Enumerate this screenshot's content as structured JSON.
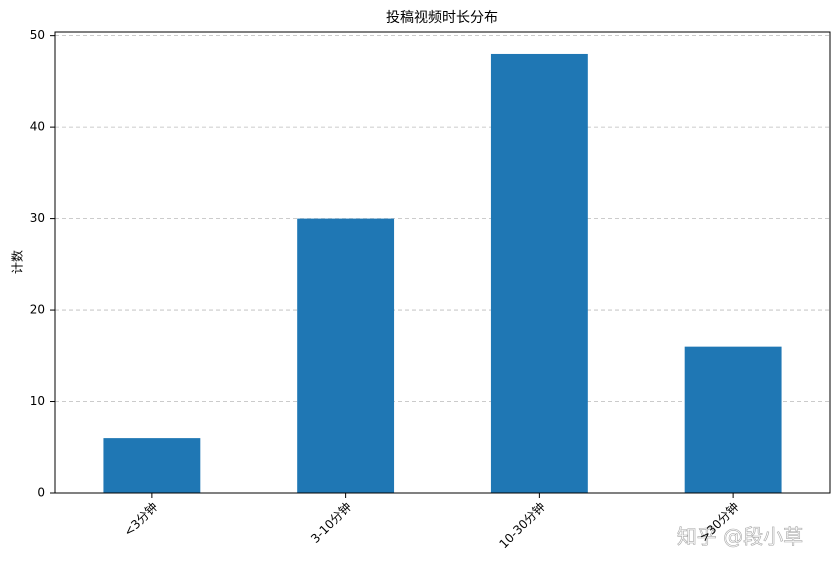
{
  "chart_data": {
    "type": "bar",
    "title": "投稿视频时长分布",
    "y_label": "计数",
    "categories": [
      "<3分钟",
      "3-10分钟",
      "10-30分钟",
      ">30分钟"
    ],
    "values": [
      6,
      30,
      48,
      16
    ],
    "color": "#1f77b4",
    "ylim": [
      0,
      50.4
    ],
    "yticks": [
      0,
      10,
      20,
      30,
      40,
      50
    ],
    "grid": true,
    "watermark": "知乎 @段小草"
  }
}
